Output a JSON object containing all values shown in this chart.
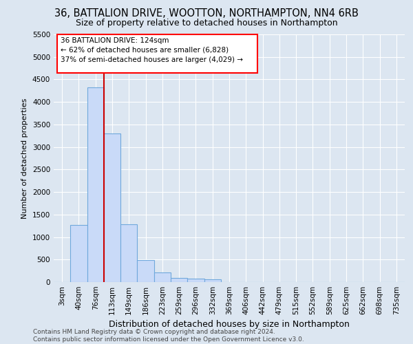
{
  "title": "36, BATTALION DRIVE, WOOTTON, NORTHAMPTON, NN4 6RB",
  "subtitle": "Size of property relative to detached houses in Northampton",
  "xlabel": "Distribution of detached houses by size in Northampton",
  "ylabel": "Number of detached properties",
  "footnote": "Contains HM Land Registry data © Crown copyright and database right 2024.\nContains public sector information licensed under the Open Government Licence v3.0.",
  "bar_labels": [
    "3sqm",
    "40sqm",
    "76sqm",
    "113sqm",
    "149sqm",
    "186sqm",
    "223sqm",
    "259sqm",
    "296sqm",
    "332sqm",
    "369sqm",
    "406sqm",
    "442sqm",
    "479sqm",
    "515sqm",
    "552sqm",
    "589sqm",
    "625sqm",
    "662sqm",
    "698sqm",
    "735sqm"
  ],
  "bar_values": [
    0,
    1270,
    4330,
    3300,
    1280,
    490,
    220,
    90,
    70,
    60,
    0,
    0,
    0,
    0,
    0,
    0,
    0,
    0,
    0,
    0,
    0
  ],
  "bar_color": "#c9daf8",
  "bar_edge_color": "#6fa8dc",
  "vline_color": "#cc0000",
  "annotation_line1": "36 BATTALION DRIVE: 124sqm",
  "annotation_line2": "← 62% of detached houses are smaller (6,828)",
  "annotation_line3": "37% of semi-detached houses are larger (4,029) →",
  "ylim": [
    0,
    5500
  ],
  "yticks": [
    0,
    500,
    1000,
    1500,
    2000,
    2500,
    3000,
    3500,
    4000,
    4500,
    5000,
    5500
  ],
  "background_color": "#dce6f1",
  "grid_color": "white",
  "title_fontsize": 10.5,
  "subtitle_fontsize": 9,
  "xlabel_fontsize": 9,
  "ylabel_fontsize": 8,
  "tick_fontsize": 7.5,
  "footnote_fontsize": 6.5
}
